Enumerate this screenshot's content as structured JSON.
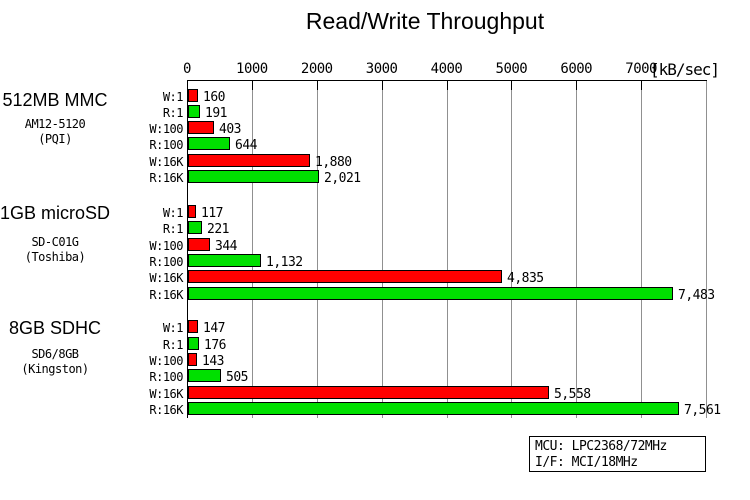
{
  "title": "Read/Write Throughput",
  "axis": {
    "unit_label": "[kB/sec]",
    "tick_labels": [
      "0",
      "1000",
      "2000",
      "3000",
      "4000",
      "5000",
      "6000",
      "7000"
    ],
    "tick_values": [
      0,
      1000,
      2000,
      3000,
      4000,
      5000,
      6000,
      7000
    ],
    "max": 8000
  },
  "colors": {
    "write_bar": "#ff0000",
    "read_bar": "#00e000",
    "gridline": "#909090",
    "axis": "#000000"
  },
  "chart_data": {
    "type": "bar",
    "orientation": "horizontal",
    "title": "Read/Write Throughput",
    "xlabel": "[kB/sec]",
    "xlim": [
      0,
      8000
    ],
    "grid": true,
    "legend": false,
    "categories": [
      "W:1",
      "R:1",
      "W:100",
      "R:100",
      "W:16K",
      "R:16K"
    ],
    "groups": [
      {
        "label": "512MB MMC",
        "model": "AM12-5120",
        "maker": "(PQI)",
        "values": [
          160,
          191,
          403,
          644,
          1880,
          2021
        ],
        "value_labels": [
          "160",
          "191",
          "403",
          "644",
          "1,880",
          "2,021"
        ]
      },
      {
        "label": "1GB microSD",
        "model": "SD-C01G",
        "maker": "(Toshiba)",
        "values": [
          117,
          221,
          344,
          1132,
          4835,
          7483
        ],
        "value_labels": [
          "117",
          "221",
          "344",
          "1,132",
          "4,835",
          "7,483"
        ]
      },
      {
        "label": "8GB SDHC",
        "model": "SD6/8GB",
        "maker": "(Kingston)",
        "values": [
          147,
          176,
          143,
          505,
          5558,
          7561
        ],
        "value_labels": [
          "147",
          "176",
          "143",
          "505",
          "5,558",
          "7,561"
        ]
      }
    ]
  },
  "info_box": {
    "lines": [
      "MCU: LPC2368/72MHz",
      "I/F: MCI/18MHz"
    ]
  }
}
